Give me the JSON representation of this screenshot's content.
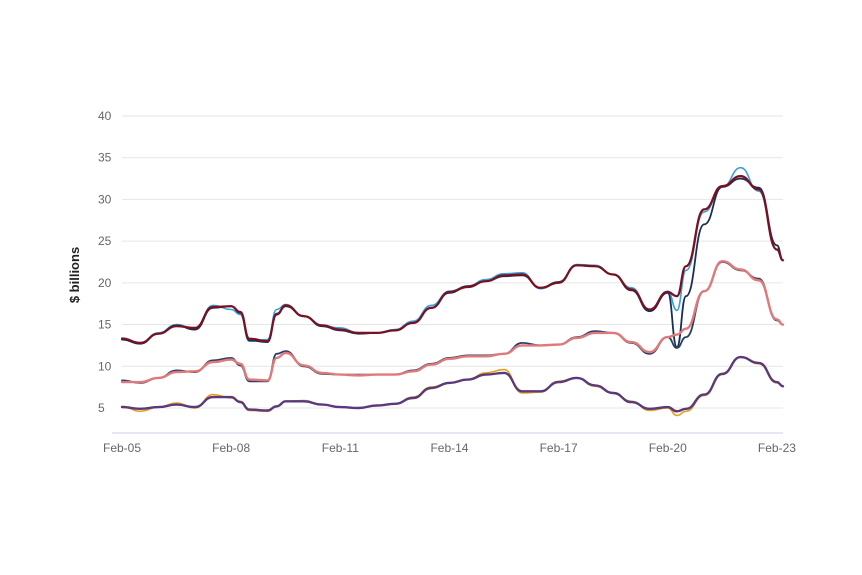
{
  "chart_data": {
    "type": "line",
    "title": "",
    "xlabel": "",
    "ylabel": "$ billions",
    "ylim": [
      2,
      40
    ],
    "y_ticks": [
      5,
      10,
      15,
      20,
      25,
      30,
      35,
      40
    ],
    "x_ticks": [
      "Feb-05",
      "Feb-08",
      "Feb-11",
      "Feb-14",
      "Feb-17",
      "Feb-20",
      "Feb-23"
    ],
    "x_range": [
      "2005-02",
      "2023-04"
    ],
    "grid": true,
    "legend": "none",
    "colors": {
      "top_raw": "#3aa0d8",
      "top_mid": "#1b2f55",
      "top_trend": "#7a1020",
      "mid_raw": "#2a3f66",
      "mid_trend": "#e07a7a",
      "low_raw": "#e8a020",
      "low_trend": "#5a3a7a"
    },
    "series": [
      {
        "x": [
          "2005-02",
          "2005-08",
          "2006-02",
          "2006-08",
          "2007-02",
          "2007-08",
          "2008-02",
          "2008-05",
          "2008-08",
          "2009-02",
          "2009-05",
          "2009-08",
          "2010-02",
          "2010-08",
          "2011-02",
          "2011-08",
          "2012-02",
          "2012-08",
          "2013-02",
          "2013-08",
          "2014-02",
          "2014-08",
          "2015-02",
          "2015-08",
          "2016-02",
          "2016-08",
          "2017-02",
          "2017-08",
          "2018-02",
          "2018-08",
          "2019-02",
          "2019-08",
          "2020-02",
          "2020-05",
          "2020-08",
          "2021-02",
          "2021-08",
          "2022-02",
          "2022-08",
          "2023-02",
          "2023-04"
        ],
        "values": [
          13.4,
          12.8,
          14.0,
          15.0,
          14.5,
          17.3,
          16.8,
          16.2,
          13.0,
          13.2,
          16.8,
          17.4,
          16.0,
          14.8,
          14.6,
          14.0,
          14.0,
          14.4,
          15.4,
          17.3,
          19.0,
          19.6,
          20.4,
          21.1,
          21.2,
          19.3,
          20.0,
          22.2,
          22.1,
          21.0,
          19.4,
          16.8,
          19.0,
          16.7,
          21.5,
          28.5,
          31.5,
          33.8,
          31.0,
          24.0,
          22.7
        ]
      },
      {
        "x": [
          "2005-02",
          "2005-08",
          "2006-02",
          "2006-08",
          "2007-02",
          "2007-08",
          "2008-02",
          "2008-05",
          "2008-08",
          "2009-02",
          "2009-05",
          "2009-08",
          "2010-02",
          "2010-08",
          "2011-02",
          "2011-08",
          "2012-02",
          "2012-08",
          "2013-02",
          "2013-08",
          "2014-02",
          "2014-08",
          "2015-02",
          "2015-08",
          "2016-02",
          "2016-08",
          "2017-02",
          "2017-08",
          "2018-02",
          "2018-08",
          "2019-02",
          "2019-08",
          "2020-02",
          "2020-05",
          "2020-08",
          "2021-02",
          "2021-08",
          "2022-02",
          "2022-08",
          "2023-02",
          "2023-04"
        ],
        "values": [
          13.2,
          12.7,
          13.9,
          14.9,
          14.4,
          17.0,
          17.2,
          16.4,
          13.1,
          12.9,
          16.3,
          17.2,
          16.0,
          14.8,
          14.3,
          13.9,
          14.0,
          14.3,
          15.2,
          17.0,
          18.8,
          19.6,
          20.2,
          20.8,
          20.9,
          19.4,
          20.1,
          22.1,
          22.0,
          21.0,
          19.1,
          16.6,
          18.8,
          12.3,
          18.4,
          27.0,
          31.5,
          32.5,
          31.4,
          24.5,
          22.7
        ]
      },
      {
        "x": [
          "2005-02",
          "2005-08",
          "2006-02",
          "2006-08",
          "2007-02",
          "2007-08",
          "2008-02",
          "2008-05",
          "2008-08",
          "2009-02",
          "2009-05",
          "2009-08",
          "2010-02",
          "2010-08",
          "2011-02",
          "2011-08",
          "2012-02",
          "2012-08",
          "2013-02",
          "2013-08",
          "2014-02",
          "2014-08",
          "2015-02",
          "2015-08",
          "2016-02",
          "2016-08",
          "2017-02",
          "2017-08",
          "2018-02",
          "2018-08",
          "2019-02",
          "2019-08",
          "2020-02",
          "2020-05",
          "2020-08",
          "2021-02",
          "2021-08",
          "2022-02",
          "2022-08",
          "2023-02",
          "2023-04"
        ],
        "values": [
          13.3,
          12.8,
          13.9,
          14.8,
          14.6,
          17.1,
          17.2,
          16.5,
          13.3,
          13.0,
          16.2,
          17.3,
          16.0,
          14.9,
          14.4,
          14.0,
          14.0,
          14.3,
          15.2,
          17.0,
          18.9,
          19.5,
          20.2,
          20.9,
          21.0,
          19.4,
          20.0,
          22.1,
          22.0,
          21.0,
          19.2,
          16.8,
          18.9,
          18.4,
          22.0,
          28.8,
          31.6,
          32.8,
          31.2,
          24.0,
          22.7
        ]
      },
      {
        "x": [
          "2005-02",
          "2005-08",
          "2006-02",
          "2006-08",
          "2007-02",
          "2007-08",
          "2008-02",
          "2008-05",
          "2008-08",
          "2009-02",
          "2009-05",
          "2009-08",
          "2010-02",
          "2010-08",
          "2011-02",
          "2011-08",
          "2012-02",
          "2012-08",
          "2013-02",
          "2013-08",
          "2014-02",
          "2014-08",
          "2015-02",
          "2015-08",
          "2016-02",
          "2016-08",
          "2017-02",
          "2017-08",
          "2018-02",
          "2018-08",
          "2019-02",
          "2019-08",
          "2020-02",
          "2020-05",
          "2020-08",
          "2021-02",
          "2021-08",
          "2022-02",
          "2022-08",
          "2023-02",
          "2023-04"
        ],
        "values": [
          8.3,
          8.0,
          8.6,
          9.5,
          9.3,
          10.7,
          11.0,
          10.1,
          8.2,
          8.2,
          11.5,
          11.8,
          10.0,
          9.1,
          9.0,
          9.0,
          9.0,
          9.0,
          9.5,
          10.3,
          11.0,
          11.3,
          11.3,
          11.5,
          12.8,
          12.5,
          12.6,
          13.5,
          14.2,
          14.0,
          12.8,
          11.5,
          13.5,
          12.2,
          13.5,
          19.0,
          22.5,
          21.5,
          20.5,
          15.5,
          15.0
        ]
      },
      {
        "x": [
          "2005-02",
          "2005-08",
          "2006-02",
          "2006-08",
          "2007-02",
          "2007-08",
          "2008-02",
          "2008-05",
          "2008-08",
          "2009-02",
          "2009-05",
          "2009-08",
          "2010-02",
          "2010-08",
          "2011-02",
          "2011-08",
          "2012-02",
          "2012-08",
          "2013-02",
          "2013-08",
          "2014-02",
          "2014-08",
          "2015-02",
          "2015-08",
          "2016-02",
          "2016-08",
          "2017-02",
          "2017-08",
          "2018-02",
          "2018-08",
          "2019-02",
          "2019-08",
          "2020-02",
          "2020-05",
          "2020-08",
          "2021-02",
          "2021-08",
          "2022-02",
          "2022-08",
          "2023-02",
          "2023-04"
        ],
        "values": [
          8.1,
          8.1,
          8.6,
          9.3,
          9.4,
          10.5,
          10.8,
          10.3,
          8.4,
          8.3,
          11.0,
          11.6,
          10.1,
          9.2,
          9.0,
          8.9,
          9.0,
          9.0,
          9.4,
          10.2,
          10.9,
          11.2,
          11.2,
          11.5,
          12.5,
          12.5,
          12.6,
          13.4,
          14.0,
          14.0,
          12.9,
          11.7,
          13.5,
          13.8,
          14.5,
          19.0,
          22.6,
          21.6,
          20.3,
          15.6,
          15.0
        ]
      },
      {
        "x": [
          "2005-02",
          "2005-08",
          "2006-02",
          "2006-08",
          "2007-02",
          "2007-08",
          "2008-02",
          "2008-05",
          "2008-08",
          "2009-02",
          "2009-05",
          "2009-08",
          "2010-02",
          "2010-08",
          "2011-02",
          "2011-08",
          "2012-02",
          "2012-08",
          "2013-02",
          "2013-08",
          "2014-02",
          "2014-08",
          "2015-02",
          "2015-08",
          "2016-02",
          "2016-08",
          "2017-02",
          "2017-08",
          "2018-02",
          "2018-08",
          "2019-02",
          "2019-08",
          "2020-02",
          "2020-05",
          "2020-08",
          "2021-02",
          "2021-08",
          "2022-02",
          "2022-08",
          "2023-02",
          "2023-04"
        ],
        "values": [
          5.2,
          4.6,
          5.1,
          5.6,
          5.0,
          6.6,
          6.2,
          5.8,
          4.7,
          4.6,
          5.2,
          5.8,
          5.9,
          5.4,
          5.1,
          5.0,
          5.3,
          5.5,
          6.3,
          7.5,
          8.0,
          8.4,
          9.2,
          9.6,
          6.8,
          6.9,
          8.2,
          8.6,
          7.6,
          6.8,
          5.8,
          4.7,
          5.0,
          4.1,
          4.6,
          6.5,
          9.0,
          11.1,
          10.3,
          8.0,
          7.6
        ]
      },
      {
        "x": [
          "2005-02",
          "2005-08",
          "2006-02",
          "2006-08",
          "2007-02",
          "2007-08",
          "2008-02",
          "2008-05",
          "2008-08",
          "2009-02",
          "2009-05",
          "2009-08",
          "2010-02",
          "2010-08",
          "2011-02",
          "2011-08",
          "2012-02",
          "2012-08",
          "2013-02",
          "2013-08",
          "2014-02",
          "2014-08",
          "2015-02",
          "2015-08",
          "2016-02",
          "2016-08",
          "2017-02",
          "2017-08",
          "2018-02",
          "2018-08",
          "2019-02",
          "2019-08",
          "2020-02",
          "2020-05",
          "2020-08",
          "2021-02",
          "2021-08",
          "2022-02",
          "2022-08",
          "2023-02",
          "2023-04"
        ],
        "values": [
          5.1,
          4.9,
          5.1,
          5.4,
          5.1,
          6.3,
          6.3,
          5.7,
          4.8,
          4.7,
          5.2,
          5.8,
          5.8,
          5.4,
          5.1,
          5.0,
          5.3,
          5.5,
          6.2,
          7.4,
          8.0,
          8.4,
          9.0,
          9.2,
          7.0,
          7.0,
          8.1,
          8.6,
          7.7,
          6.8,
          5.7,
          4.9,
          5.1,
          4.6,
          4.9,
          6.6,
          9.1,
          11.1,
          10.4,
          8.1,
          7.6
        ]
      }
    ]
  }
}
